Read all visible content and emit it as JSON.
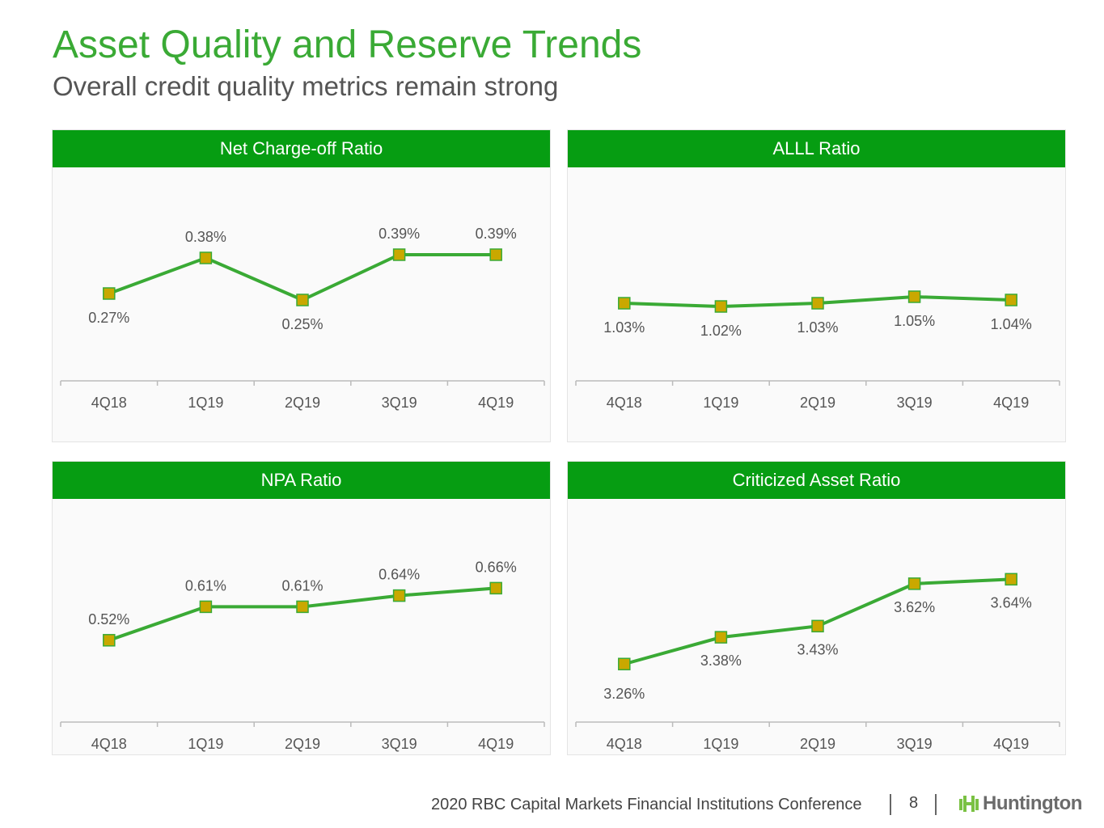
{
  "title": "Asset Quality and Reserve Trends",
  "subtitle": "Overall credit quality metrics remain strong",
  "colors": {
    "header": "#069d12",
    "line": "#3aaa35",
    "marker": "#c9a800",
    "marker_border": "#3aaa35"
  },
  "chart_data": [
    {
      "type": "line",
      "title": "Net Charge-off Ratio",
      "categories": [
        "4Q18",
        "1Q19",
        "2Q19",
        "3Q19",
        "4Q19"
      ],
      "values": [
        0.27,
        0.38,
        0.25,
        0.39,
        0.39
      ],
      "labels": [
        "0.27%",
        "0.38%",
        "0.25%",
        "0.39%",
        "0.39%"
      ],
      "ylim": [
        0,
        0.66
      ],
      "grid": false
    },
    {
      "type": "line",
      "title": "ALLL Ratio",
      "categories": [
        "4Q18",
        "1Q19",
        "2Q19",
        "3Q19",
        "4Q19"
      ],
      "values": [
        1.03,
        1.02,
        1.03,
        1.05,
        1.04
      ],
      "labels": [
        "1.03%",
        "1.02%",
        "1.03%",
        "1.05%",
        "1.04%"
      ],
      "ylim": [
        0.79,
        1.45
      ],
      "grid": false
    },
    {
      "type": "line",
      "title": "NPA Ratio",
      "categories": [
        "4Q18",
        "1Q19",
        "2Q19",
        "3Q19",
        "4Q19"
      ],
      "values": [
        0.52,
        0.61,
        0.61,
        0.64,
        0.66
      ],
      "labels": [
        "0.52%",
        "0.61%",
        "0.61%",
        "0.64%",
        "0.66%"
      ],
      "ylim": [
        0.3,
        0.9
      ],
      "grid": false
    },
    {
      "type": "line",
      "title": "Criticized Asset Ratio",
      "categories": [
        "4Q18",
        "1Q19",
        "2Q19",
        "3Q19",
        "4Q19"
      ],
      "values": [
        3.26,
        3.38,
        3.43,
        3.62,
        3.64
      ],
      "labels": [
        "3.26%",
        "3.38%",
        "3.43%",
        "3.62%",
        "3.64%"
      ],
      "ylim": [
        3.0,
        4.0
      ],
      "grid": false
    }
  ],
  "footer": {
    "conference": "2020 RBC Capital Markets Financial Institutions Conference",
    "page": "8",
    "logo": "Huntington"
  }
}
